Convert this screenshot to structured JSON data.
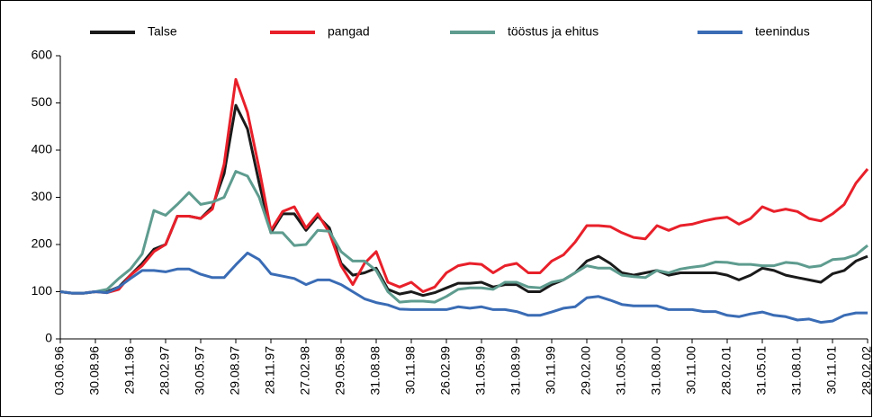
{
  "chart_data": {
    "type": "line",
    "categories": [
      "03.06.96",
      null,
      null,
      "30.08.96",
      null,
      null,
      "29.11.96",
      null,
      null,
      "28.02.97",
      null,
      null,
      "30.05.97",
      null,
      null,
      "29.08.97",
      null,
      null,
      "28.11.97",
      null,
      null,
      "27.02.98",
      null,
      null,
      "29.05.98",
      null,
      null,
      "31.08.98",
      null,
      null,
      "30.11.98",
      null,
      null,
      "26.02.99",
      null,
      null,
      "31.05.99",
      null,
      null,
      "31.08.99",
      null,
      null,
      "30.11.99",
      null,
      null,
      "29.02.00",
      null,
      null,
      "31.05.00",
      null,
      null,
      "31.08.00",
      null,
      null,
      "30.11.00",
      null,
      null,
      "28.02.01",
      null,
      null,
      "31.05.01",
      null,
      null,
      "31.08.01",
      null,
      null,
      "30.11.01",
      null,
      null,
      "28.02.02"
    ],
    "series": [
      {
        "name": "Talse",
        "color": "#1a1a1a",
        "values": [
          100,
          97,
          97,
          100,
          100,
          110,
          135,
          160,
          190,
          200,
          260,
          260,
          255,
          280,
          350,
          495,
          445,
          330,
          225,
          265,
          265,
          230,
          260,
          235,
          160,
          135,
          140,
          150,
          105,
          95,
          100,
          92,
          98,
          108,
          118,
          118,
          120,
          110,
          115,
          115,
          100,
          100,
          115,
          125,
          140,
          165,
          175,
          160,
          140,
          135,
          140,
          145,
          135,
          140,
          140,
          140,
          140,
          135,
          125,
          135,
          150,
          145,
          135,
          130,
          125,
          120,
          138,
          145,
          165,
          175
        ]
      },
      {
        "name": "pangad",
        "color": "#e8202a",
        "values": [
          100,
          97,
          97,
          100,
          98,
          105,
          135,
          155,
          185,
          200,
          260,
          260,
          255,
          275,
          370,
          550,
          480,
          360,
          230,
          270,
          280,
          235,
          265,
          225,
          155,
          115,
          160,
          185,
          120,
          110,
          120,
          100,
          110,
          140,
          155,
          160,
          158,
          140,
          155,
          160,
          140,
          140,
          165,
          178,
          205,
          240,
          240,
          238,
          225,
          215,
          212,
          240,
          230,
          240,
          243,
          250,
          255,
          258,
          243,
          255,
          280,
          270,
          275,
          270,
          255,
          250,
          265,
          285,
          330,
          360
        ]
      },
      {
        "name": "tööstus ja ehitus",
        "color": "#5e9c8f",
        "values": [
          100,
          97,
          97,
          100,
          105,
          128,
          148,
          180,
          272,
          262,
          285,
          310,
          285,
          290,
          300,
          355,
          345,
          300,
          225,
          225,
          198,
          200,
          230,
          228,
          185,
          165,
          165,
          145,
          100,
          78,
          80,
          80,
          78,
          90,
          105,
          108,
          108,
          105,
          120,
          120,
          110,
          108,
          120,
          125,
          140,
          155,
          150,
          150,
          135,
          132,
          130,
          145,
          140,
          148,
          152,
          155,
          163,
          162,
          158,
          158,
          155,
          155,
          162,
          160,
          152,
          155,
          168,
          170,
          178,
          198
        ]
      },
      {
        "name": "teenindus",
        "color": "#3a6cb5",
        "values": [
          100,
          97,
          97,
          100,
          98,
          110,
          128,
          145,
          145,
          142,
          148,
          148,
          137,
          130,
          130,
          157,
          182,
          168,
          138,
          133,
          128,
          115,
          125,
          125,
          115,
          100,
          85,
          77,
          72,
          63,
          62,
          62,
          62,
          62,
          68,
          65,
          68,
          62,
          62,
          58,
          50,
          50,
          57,
          65,
          68,
          87,
          90,
          82,
          73,
          70,
          70,
          70,
          62,
          62,
          62,
          58,
          58,
          50,
          47,
          53,
          57,
          50,
          47,
          40,
          42,
          35,
          38,
          50,
          55,
          55
        ]
      }
    ],
    "ylim": [
      0,
      600
    ],
    "yticks": [
      0,
      100,
      200,
      300,
      400,
      500,
      600
    ]
  }
}
